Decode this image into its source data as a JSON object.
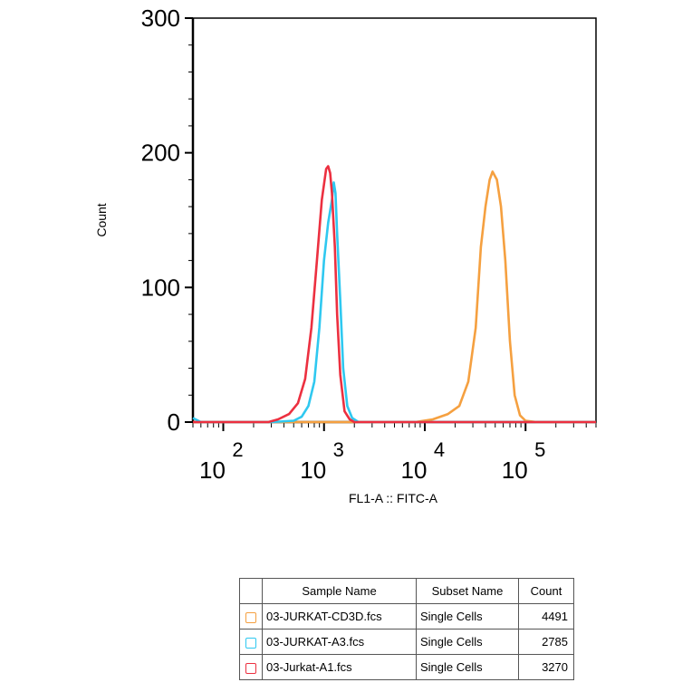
{
  "chart_data": {
    "type": "line",
    "title": "",
    "xlabel": "FL1-A :: FITC-A",
    "ylabel": "Count",
    "x_scale": "log",
    "xlim": [
      50,
      500000
    ],
    "ylim": [
      0,
      300
    ],
    "y_ticks": [
      0,
      100,
      200,
      300
    ],
    "x_ticks": [
      {
        "value": 100,
        "base": "10",
        "exp": "2"
      },
      {
        "value": 1000,
        "base": "10",
        "exp": "3"
      },
      {
        "value": 10000,
        "base": "10",
        "exp": "4"
      },
      {
        "value": 100000,
        "base": "10",
        "exp": "5"
      }
    ],
    "grid": false,
    "legend_position": "bottom",
    "series": [
      {
        "name": "03-JURKAT-CD3D.fcs",
        "color": "#f5a040",
        "points": [
          [
            50,
            0
          ],
          [
            8000,
            0
          ],
          [
            12000,
            2
          ],
          [
            17000,
            6
          ],
          [
            22000,
            12
          ],
          [
            27000,
            30
          ],
          [
            32000,
            70
          ],
          [
            36000,
            130
          ],
          [
            40000,
            160
          ],
          [
            44000,
            180
          ],
          [
            47000,
            186
          ],
          [
            52000,
            180
          ],
          [
            57000,
            160
          ],
          [
            63000,
            120
          ],
          [
            70000,
            60
          ],
          [
            78000,
            20
          ],
          [
            88000,
            5
          ],
          [
            100000,
            1
          ],
          [
            130000,
            0
          ],
          [
            500000,
            0
          ]
        ]
      },
      {
        "name": "03-JURKAT-A3.fcs",
        "color": "#2fc8f0",
        "points": [
          [
            50,
            3
          ],
          [
            60,
            0
          ],
          [
            300,
            0
          ],
          [
            500,
            1
          ],
          [
            600,
            4
          ],
          [
            700,
            12
          ],
          [
            800,
            30
          ],
          [
            900,
            70
          ],
          [
            1000,
            120
          ],
          [
            1100,
            148
          ],
          [
            1200,
            165
          ],
          [
            1250,
            178
          ],
          [
            1300,
            170
          ],
          [
            1350,
            140
          ],
          [
            1450,
            90
          ],
          [
            1550,
            40
          ],
          [
            1700,
            12
          ],
          [
            1900,
            3
          ],
          [
            2200,
            0
          ],
          [
            500000,
            0
          ]
        ]
      },
      {
        "name": "03-Jurkat-A1.fcs",
        "color": "#ec3040",
        "points": [
          [
            50,
            0
          ],
          [
            280,
            0
          ],
          [
            350,
            2
          ],
          [
            450,
            6
          ],
          [
            550,
            14
          ],
          [
            650,
            32
          ],
          [
            750,
            70
          ],
          [
            850,
            120
          ],
          [
            950,
            165
          ],
          [
            1050,
            188
          ],
          [
            1100,
            190
          ],
          [
            1150,
            185
          ],
          [
            1200,
            170
          ],
          [
            1280,
            130
          ],
          [
            1350,
            80
          ],
          [
            1450,
            35
          ],
          [
            1600,
            8
          ],
          [
            1800,
            2
          ],
          [
            2000,
            0
          ],
          [
            500000,
            0
          ]
        ]
      }
    ]
  },
  "legend": {
    "headers": {
      "sample": "Sample Name",
      "subset": "Subset Name",
      "count": "Count"
    },
    "rows": [
      {
        "sample": "03-JURKAT-CD3D.fcs",
        "subset": "Single Cells",
        "count": "4491",
        "color": "#f5a040"
      },
      {
        "sample": "03-JURKAT-A3.fcs",
        "subset": "Single Cells",
        "count": "2785",
        "color": "#2fc8f0"
      },
      {
        "sample": "03-Jurkat-A1.fcs",
        "subset": "Single Cells",
        "count": "3270",
        "color": "#ec3040"
      }
    ]
  }
}
